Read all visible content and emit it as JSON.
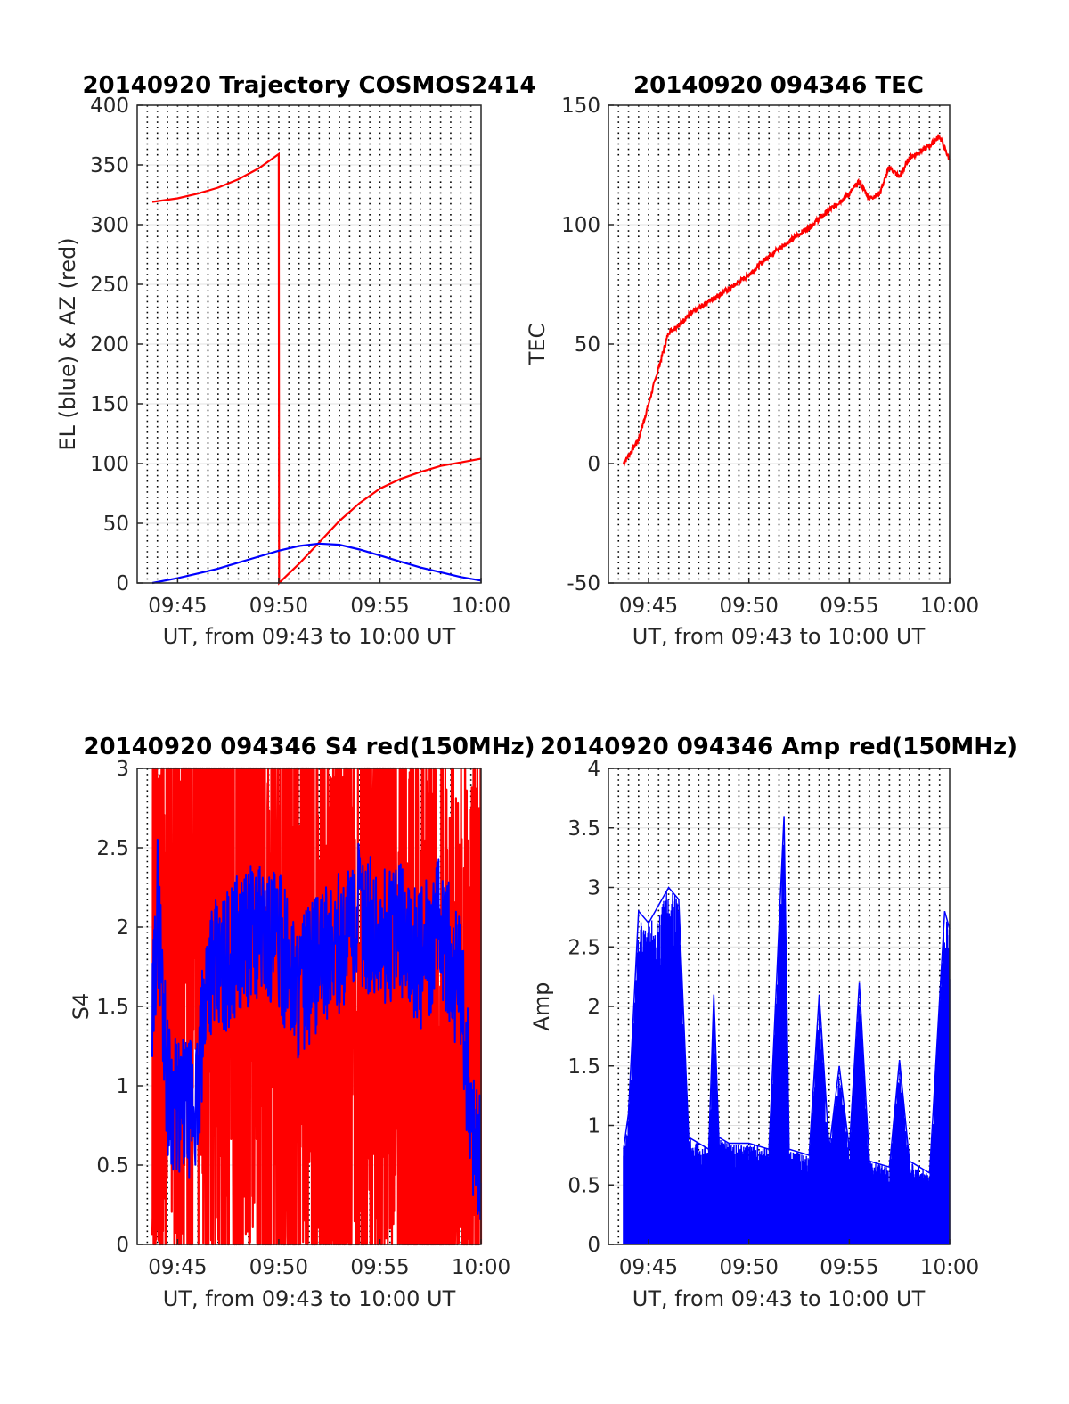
{
  "figure": {
    "background": "#ffffff"
  },
  "chart_data": [
    {
      "type": "line",
      "title": "20140920 Trajectory COSMOS2414",
      "xlabel": "UT, from 09:43 to 10:00 UT",
      "ylabel": "EL (blue) & AZ (red)",
      "x_unit": "minutes UT",
      "xlim": [
        "09:43",
        "10:00"
      ],
      "ylim": [
        0,
        400
      ],
      "xticks": [
        "09:45",
        "09:50",
        "09:55",
        "10:00"
      ],
      "yticks": [
        "0",
        "50",
        "100",
        "150",
        "200",
        "250",
        "300",
        "350",
        "400"
      ],
      "grid": "dotted vertical every 30 s, solid horizontal",
      "series": [
        {
          "color": "#ff0000",
          "x": [
            "09:43:45",
            "09:45:00",
            "09:46:00",
            "09:47:00",
            "09:48:00",
            "09:49:00",
            "09:50:00",
            "09:50:01",
            "09:50:30",
            "09:51:00",
            "09:52:00",
            "09:53:00",
            "09:54:00",
            "09:55:00",
            "09:56:00",
            "09:57:00",
            "09:58:00",
            "09:59:00",
            "10:00:00"
          ],
          "values": [
            319,
            322,
            326,
            331,
            338,
            347,
            359,
            0,
            8,
            16,
            34,
            52,
            67,
            79,
            87,
            93,
            98,
            101,
            104
          ]
        },
        {
          "color": "#0000ff",
          "x": [
            "09:43:45",
            "09:45:00",
            "09:46:00",
            "09:47:00",
            "09:48:00",
            "09:49:00",
            "09:50:00",
            "09:51:00",
            "09:52:00",
            "09:53:00",
            "09:54:00",
            "09:55:00",
            "09:56:00",
            "09:57:00",
            "09:58:00",
            "09:59:00",
            "10:00:00"
          ],
          "values": [
            0,
            4,
            8,
            12,
            17,
            22,
            27,
            31,
            33,
            32,
            28,
            23,
            18,
            13,
            9,
            5,
            2
          ]
        }
      ]
    },
    {
      "type": "line",
      "title": "20140920 094346 TEC",
      "xlabel": "UT, from 09:43 to 10:00 UT",
      "ylabel": "TEC",
      "xlim": [
        "09:43",
        "10:00"
      ],
      "ylim": [
        -50,
        150
      ],
      "xticks": [
        "09:45",
        "09:50",
        "09:55",
        "10:00"
      ],
      "yticks": [
        "-50",
        "0",
        "50",
        "100",
        "150"
      ],
      "grid": "dotted vertical every 30 s, solid horizontal",
      "series": [
        {
          "color": "#ff0000",
          "x": [
            "09:43:45",
            "09:44:30",
            "09:45:00",
            "09:45:30",
            "09:46:00",
            "09:46:30",
            "09:47:00",
            "09:48:00",
            "09:49:00",
            "09:50:00",
            "09:51:00",
            "09:52:00",
            "09:53:00",
            "09:54:00",
            "09:55:00",
            "09:55:30",
            "09:56:00",
            "09:56:30",
            "09:57:00",
            "09:57:30",
            "09:58:00",
            "09:59:00",
            "09:59:30",
            "10:00:00"
          ],
          "values": [
            0,
            10,
            25,
            40,
            55,
            58,
            62,
            68,
            73,
            79,
            87,
            93,
            99,
            106,
            113,
            118,
            111,
            113,
            124,
            120,
            128,
            133,
            137,
            127
          ]
        }
      ]
    },
    {
      "type": "line",
      "title": "20140920 094346 S4 red(150MHz)",
      "xlabel": "UT, from 09:43 to 10:00 UT",
      "ylabel": "S4",
      "xlim": [
        "09:43",
        "10:00"
      ],
      "ylim": [
        0,
        3
      ],
      "xticks": [
        "09:45",
        "09:50",
        "09:55",
        "10:00"
      ],
      "yticks": [
        "0",
        "0.5",
        "1",
        "1.5",
        "2",
        "2.5",
        "3"
      ],
      "grid": "dotted vertical every 30 s, solid horizontal",
      "series": [
        {
          "color": "#ff0000",
          "x": [
            "09:43:45",
            "09:45:00",
            "09:46:00",
            "09:47:00",
            "09:48:00",
            "09:49:00",
            "09:50:00",
            "09:51:00",
            "09:52:00",
            "09:53:00",
            "09:54:00",
            "09:55:00",
            "09:56:00",
            "09:57:00",
            "09:58:00",
            "09:59:00",
            "10:00:00"
          ],
          "values": [
            1.5,
            2.0,
            2.2,
            1.8,
            1.7,
            1.8,
            1.6,
            1.5,
            1.4,
            1.5,
            1.6,
            1.7,
            1.6,
            1.2,
            0.8,
            1.0,
            1.0
          ],
          "note_range": [
            0,
            3
          ]
        },
        {
          "color": "#0000ff",
          "x": [
            "09:43:45",
            "09:44:00",
            "09:44:30",
            "09:45:00",
            "09:45:30",
            "09:46:00",
            "09:46:30",
            "09:47:00",
            "09:48:00",
            "09:49:00",
            "09:50:00",
            "09:51:00",
            "09:52:00",
            "09:53:00",
            "09:54:00",
            "09:55:00",
            "09:56:00",
            "09:57:00",
            "09:58:00",
            "09:59:00",
            "09:59:30",
            "10:00:00"
          ],
          "values": [
            1.3,
            2.2,
            1.0,
            0.85,
            0.85,
            0.9,
            1.8,
            1.7,
            1.9,
            2.0,
            1.9,
            1.6,
            1.8,
            1.9,
            2.1,
            1.9,
            2.0,
            1.8,
            2.0,
            1.6,
            0.8,
            0.5
          ]
        }
      ]
    },
    {
      "type": "line",
      "title": "20140920 094346 Amp red(150MHz)",
      "xlabel": "UT, from 09:43 to 10:00 UT",
      "ylabel": "Amp",
      "xlim": [
        "09:43",
        "10:00"
      ],
      "ylim": [
        0,
        4
      ],
      "xticks": [
        "09:45",
        "09:50",
        "09:55",
        "10:00"
      ],
      "yticks": [
        "0",
        "0.5",
        "1",
        "1.5",
        "2",
        "2.5",
        "3",
        "3.5",
        "4"
      ],
      "grid": "dotted vertical every 30 s, solid horizontal",
      "series": [
        {
          "color": "#0000ff",
          "style": "dense spikes from 0",
          "x": [
            "09:43:45",
            "09:44:00",
            "09:44:30",
            "09:45:00",
            "09:45:30",
            "09:46:00",
            "09:46:30",
            "09:47:00",
            "09:48:00",
            "09:48:15",
            "09:48:30",
            "09:49:00",
            "09:50:00",
            "09:51:00",
            "09:51:45",
            "09:52:00",
            "09:53:00",
            "09:53:30",
            "09:54:00",
            "09:54:30",
            "09:55:00",
            "09:55:30",
            "09:56:00",
            "09:57:00",
            "09:57:30",
            "09:58:00",
            "09:59:00",
            "09:59:45",
            "10:00:00"
          ],
          "values": [
            0.8,
            1.1,
            2.8,
            2.7,
            2.85,
            3.0,
            2.9,
            0.9,
            0.8,
            2.1,
            0.9,
            0.85,
            0.85,
            0.8,
            3.6,
            0.8,
            0.75,
            2.1,
            0.8,
            1.5,
            0.8,
            2.2,
            0.7,
            0.65,
            1.55,
            0.7,
            0.6,
            2.8,
            2.65
          ]
        }
      ]
    }
  ]
}
